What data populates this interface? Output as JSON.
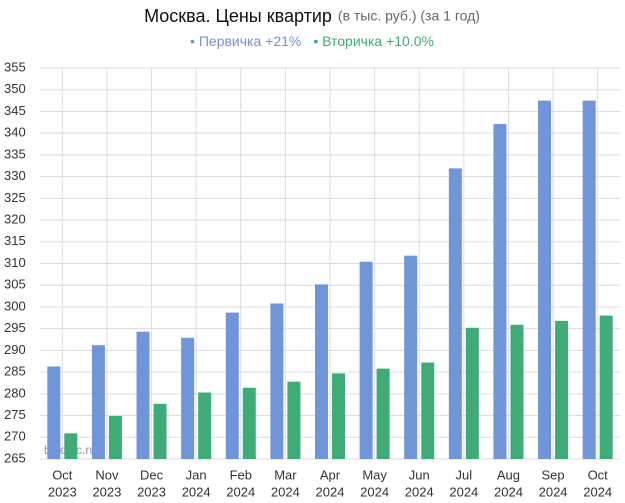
{
  "chart_data": {
    "type": "bar",
    "title": "Москва. Цены квартир",
    "subtitle": "(в тыс. руб.) (за 1 год)",
    "watermark": "bytopic.ru",
    "categories": [
      [
        "Oct",
        "2023"
      ],
      [
        "Nov",
        "2023"
      ],
      [
        "Dec",
        "2023"
      ],
      [
        "Jan",
        "2024"
      ],
      [
        "Feb",
        "2024"
      ],
      [
        "Mar",
        "2024"
      ],
      [
        "Apr",
        "2024"
      ],
      [
        "May",
        "2024"
      ],
      [
        "Jun",
        "2024"
      ],
      [
        "Jul",
        "2024"
      ],
      [
        "Aug",
        "2024"
      ],
      [
        "Sep",
        "2024"
      ],
      [
        "Oct",
        "2024"
      ]
    ],
    "series": [
      {
        "name": "Первичка +21%",
        "color": "#7095d9",
        "values": [
          286.3,
          291.2,
          294.3,
          292.9,
          298.7,
          300.8,
          305.2,
          310.4,
          311.8,
          331.9,
          342.1,
          347.5,
          347.5
        ]
      },
      {
        "name": "Вторичка +10.0%",
        "color": "#3fab77",
        "values": [
          270.9,
          274.9,
          277.7,
          280.3,
          281.4,
          282.8,
          284.7,
          285.8,
          287.2,
          295.2,
          295.9,
          296.8,
          298.0
        ]
      }
    ],
    "ylim": [
      265,
      355
    ],
    "yticks": [
      265,
      270,
      275,
      280,
      285,
      290,
      295,
      300,
      305,
      310,
      315,
      320,
      325,
      330,
      335,
      340,
      345,
      350,
      355
    ],
    "grid": true
  }
}
